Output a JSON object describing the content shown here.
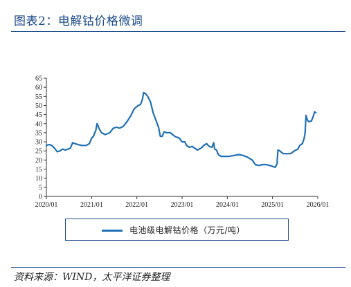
{
  "header": {
    "title": "图表2：电解钴价格微调"
  },
  "chart_data": {
    "type": "line",
    "title": "",
    "xlabel": "",
    "ylabel": "",
    "ylim": [
      0,
      65
    ],
    "yticks": [
      0,
      5,
      10,
      15,
      20,
      25,
      30,
      35,
      40,
      45,
      50,
      55,
      60,
      65
    ],
    "xlim": [
      2020.0,
      2026.0
    ],
    "xticks": [
      {
        "value": 2020.0,
        "label": "2020/01"
      },
      {
        "value": 2021.0,
        "label": "2021/01"
      },
      {
        "value": 2022.0,
        "label": "2022/01"
      },
      {
        "value": 2023.0,
        "label": "2023/01"
      },
      {
        "value": 2024.0,
        "label": "2024/01"
      },
      {
        "value": 2025.0,
        "label": "2025/01"
      },
      {
        "value": 2026.0,
        "label": "2026/01"
      }
    ],
    "grid": false,
    "legend_position": "bottom",
    "series": [
      {
        "name": "电池级电解钴价格（万元/吨）",
        "color": "#1f6fb5",
        "points": [
          [
            2020.0,
            28
          ],
          [
            2020.06,
            28.5
          ],
          [
            2020.12,
            28
          ],
          [
            2020.18,
            26.5
          ],
          [
            2020.24,
            24.5
          ],
          [
            2020.3,
            25
          ],
          [
            2020.36,
            26
          ],
          [
            2020.42,
            25.5
          ],
          [
            2020.48,
            26
          ],
          [
            2020.53,
            26.5
          ],
          [
            2020.58,
            29.5
          ],
          [
            2020.63,
            29
          ],
          [
            2020.7,
            28.5
          ],
          [
            2020.78,
            28
          ],
          [
            2020.88,
            28
          ],
          [
            2020.95,
            29
          ],
          [
            2021.0,
            32
          ],
          [
            2021.04,
            33
          ],
          [
            2021.07,
            35
          ],
          [
            2021.09,
            36
          ],
          [
            2021.12,
            40
          ],
          [
            2021.14,
            39
          ],
          [
            2021.17,
            37
          ],
          [
            2021.22,
            35
          ],
          [
            2021.3,
            34
          ],
          [
            2021.4,
            35
          ],
          [
            2021.48,
            37.5
          ],
          [
            2021.55,
            38
          ],
          [
            2021.62,
            37.5
          ],
          [
            2021.7,
            38.5
          ],
          [
            2021.78,
            41
          ],
          [
            2021.86,
            44
          ],
          [
            2021.94,
            48
          ],
          [
            2021.98,
            49
          ],
          [
            2022.03,
            50
          ],
          [
            2022.08,
            50.5
          ],
          [
            2022.12,
            53
          ],
          [
            2022.15,
            57
          ],
          [
            2022.19,
            56.5
          ],
          [
            2022.24,
            55
          ],
          [
            2022.3,
            52
          ],
          [
            2022.36,
            46
          ],
          [
            2022.42,
            42
          ],
          [
            2022.48,
            38
          ],
          [
            2022.52,
            33
          ],
          [
            2022.56,
            33
          ],
          [
            2022.6,
            35.5
          ],
          [
            2022.66,
            35
          ],
          [
            2022.74,
            35
          ],
          [
            2022.84,
            33
          ],
          [
            2022.94,
            32
          ],
          [
            2023.0,
            30
          ],
          [
            2023.06,
            30
          ],
          [
            2023.1,
            28
          ],
          [
            2023.16,
            27
          ],
          [
            2023.22,
            27.5
          ],
          [
            2023.28,
            26.5
          ],
          [
            2023.34,
            25.5
          ],
          [
            2023.42,
            26.5
          ],
          [
            2023.48,
            28
          ],
          [
            2023.54,
            29
          ],
          [
            2023.6,
            27.5
          ],
          [
            2023.66,
            27
          ],
          [
            2023.7,
            29.5
          ],
          [
            2023.72,
            26
          ],
          [
            2023.76,
            25.5
          ],
          [
            2023.8,
            23
          ],
          [
            2023.86,
            22
          ],
          [
            2023.95,
            22
          ],
          [
            2024.05,
            22
          ],
          [
            2024.15,
            22.5
          ],
          [
            2024.25,
            23
          ],
          [
            2024.35,
            22.5
          ],
          [
            2024.45,
            21.5
          ],
          [
            2024.55,
            20
          ],
          [
            2024.62,
            17.5
          ],
          [
            2024.7,
            17
          ],
          [
            2024.78,
            17.5
          ],
          [
            2024.86,
            17.5
          ],
          [
            2024.94,
            17
          ],
          [
            2025.0,
            16.5
          ],
          [
            2025.06,
            16
          ],
          [
            2025.1,
            18
          ],
          [
            2025.12,
            25.5
          ],
          [
            2025.16,
            25
          ],
          [
            2025.24,
            23.5
          ],
          [
            2025.32,
            23.5
          ],
          [
            2025.4,
            23.5
          ],
          [
            2025.48,
            25
          ],
          [
            2025.56,
            26
          ],
          [
            2025.6,
            28
          ],
          [
            2025.66,
            29
          ],
          [
            2025.7,
            32
          ],
          [
            2025.72,
            35
          ],
          [
            2025.74,
            44.5
          ],
          [
            2025.77,
            42
          ],
          [
            2025.8,
            41
          ],
          [
            2025.86,
            41.5
          ],
          [
            2025.9,
            44
          ],
          [
            2025.93,
            46.5
          ],
          [
            2025.96,
            46
          ]
        ]
      }
    ]
  },
  "footer": {
    "source": "资料来源：WIND，太平洋证券整理"
  }
}
